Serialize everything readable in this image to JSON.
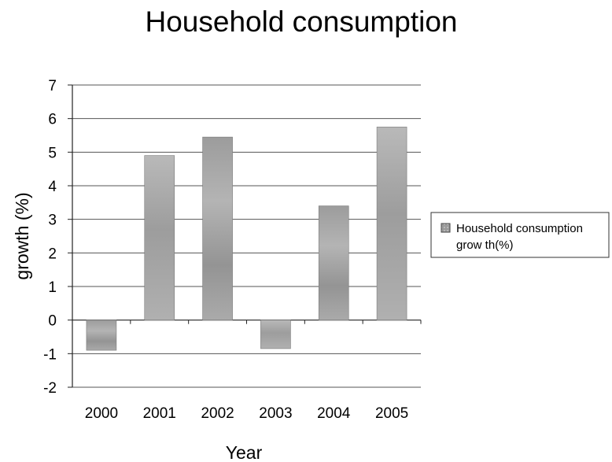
{
  "chart_data": {
    "type": "bar",
    "title": "Household consumption",
    "xlabel": "Year",
    "ylabel": "growth (%)",
    "categories": [
      "2000",
      "2001",
      "2002",
      "2003",
      "2004",
      "2005"
    ],
    "series": [
      {
        "name": "Household consumption growth(%)",
        "values": [
          -0.9,
          4.9,
          5.45,
          -0.85,
          3.4,
          5.75
        ]
      }
    ],
    "ylim": [
      -2,
      7
    ],
    "yticks": [
      -2,
      -1,
      0,
      1,
      2,
      3,
      4,
      5,
      6,
      7
    ],
    "grid": true,
    "legend": "right",
    "colors": {
      "bar_dark": "#8f8f8f",
      "bar_light": "#b6b6b6",
      "grid": "#555555",
      "axis": "#222222"
    }
  },
  "legend": {
    "line1": "Household consumption",
    "line2": "grow th(%)"
  }
}
